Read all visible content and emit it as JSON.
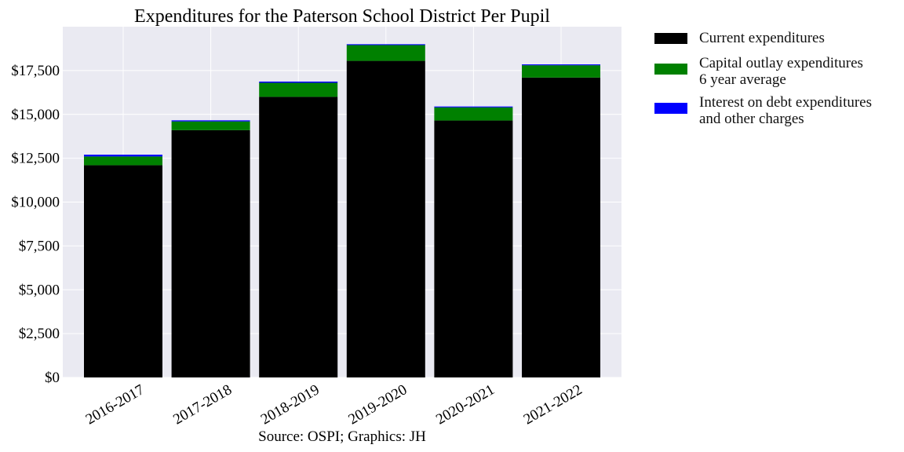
{
  "chart_data": {
    "type": "bar",
    "stacked": true,
    "title": "Expenditures for the Paterson School District Per Pupil",
    "xlabel": "",
    "ylabel": "",
    "source": "Source: OSPI; Graphics: JH",
    "categories": [
      "2016-2017",
      "2017-2018",
      "2018-2019",
      "2019-2020",
      "2020-2021",
      "2021-2022"
    ],
    "series": [
      {
        "name": "Current expenditures",
        "color": "#000000",
        "values": [
          12100,
          14100,
          16000,
          18050,
          14650,
          17100
        ]
      },
      {
        "name": "Capital outlay expenditures\n6 year average",
        "color": "#008000",
        "values": [
          500,
          500,
          800,
          900,
          750,
          700
        ]
      },
      {
        "name": "Interest on debt expenditures\nand other charges",
        "color": "#0000ff",
        "values": [
          100,
          60,
          70,
          50,
          50,
          50
        ]
      }
    ],
    "ylim": [
      0,
      20000
    ],
    "yticks": [
      0,
      2500,
      5000,
      7500,
      10000,
      12500,
      15000,
      17500
    ],
    "ytick_labels": [
      "$0",
      "$2,500",
      "$5,000",
      "$7,500",
      "$10,000",
      "$12,500",
      "$15,000",
      "$17,500"
    ],
    "grid": true,
    "background": "#eaeaf2",
    "legend_position": "outside-right"
  }
}
